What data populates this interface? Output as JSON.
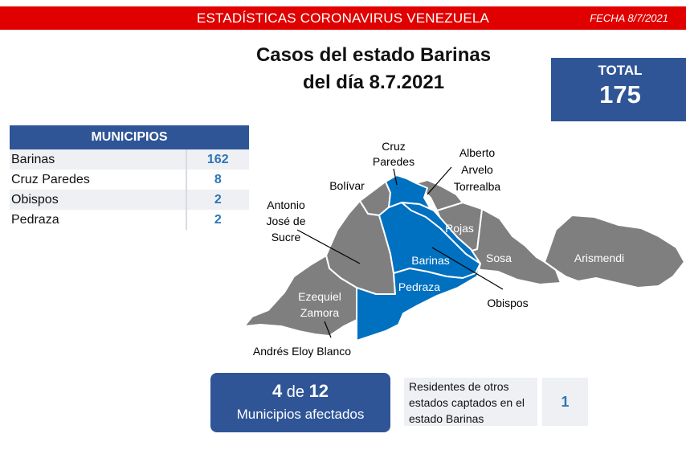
{
  "header": {
    "title": "ESTADÍSTICAS CORONAVIRUS VENEZUELA",
    "date": "FECHA 8/7/2021"
  },
  "headline": {
    "line1": "Casos del estado Barinas",
    "line2": "del día 8.7.2021"
  },
  "total": {
    "label": "TOTAL",
    "value": "175"
  },
  "municipalities_table": {
    "header": "MUNICIPIOS",
    "rows": [
      {
        "name": "Barinas",
        "cases": "162"
      },
      {
        "name": "Cruz Paredes",
        "cases": "8"
      },
      {
        "name": "Obispos",
        "cases": "2"
      },
      {
        "name": "Pedraza",
        "cases": "2"
      }
    ]
  },
  "map": {
    "colors": {
      "affected": "#0070c0",
      "unaffected": "#7f7f7f",
      "border": "#ffffff"
    },
    "labels": {
      "cruz_paredes_1": "Cruz",
      "cruz_paredes_2": "Paredes",
      "alberto_1": "Alberto",
      "alberto_2": "Arvelo",
      "alberto_3": "Torrealba",
      "bolivar": "Bolívar",
      "antonio_1": "Antonio",
      "antonio_2": "José de",
      "antonio_3": "Sucre",
      "rojas": "Rojas",
      "barinas": "Barinas",
      "sosa": "Sosa",
      "arismendi": "Arismendi",
      "pedraza": "Pedraza",
      "ezequiel_1": "Ezequiel",
      "ezequiel_2": "Zamora",
      "obispos": "Obispos",
      "andres": "Andrés Eloy Blanco"
    }
  },
  "affected": {
    "count": "4",
    "of": "de",
    "total": "12",
    "label": "Municipios afectados"
  },
  "residents": {
    "line1": "Residentes de otros",
    "line2": "estados captados en el",
    "line3": "estado Barinas",
    "value": "1"
  },
  "colors": {
    "brand_red": "#e00000",
    "brand_blue": "#2f5597",
    "value_blue": "#2e75b6"
  }
}
